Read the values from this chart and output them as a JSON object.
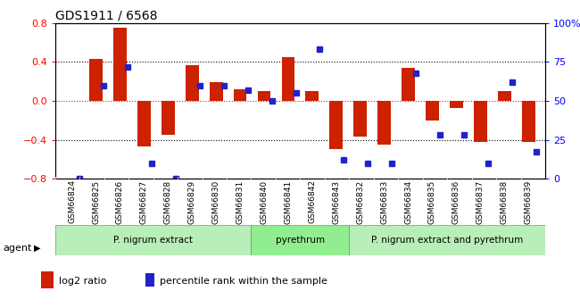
{
  "title": "GDS1911 / 6568",
  "samples": [
    "GSM66824",
    "GSM66825",
    "GSM66826",
    "GSM66827",
    "GSM66828",
    "GSM66829",
    "GSM66830",
    "GSM66831",
    "GSM66840",
    "GSM66841",
    "GSM66842",
    "GSM66843",
    "GSM66832",
    "GSM66833",
    "GSM66834",
    "GSM66835",
    "GSM66836",
    "GSM66837",
    "GSM66838",
    "GSM66839"
  ],
  "log2_ratio": [
    0.0,
    0.43,
    0.75,
    -0.47,
    -0.35,
    0.37,
    0.19,
    0.12,
    0.1,
    0.45,
    0.1,
    -0.5,
    -0.37,
    -0.45,
    0.34,
    -0.2,
    -0.07,
    -0.42,
    0.1,
    -0.42
  ],
  "percentile": [
    0,
    60,
    72,
    10,
    0,
    60,
    60,
    57,
    50,
    55,
    83,
    12,
    10,
    10,
    68,
    28,
    28,
    10,
    62,
    17
  ],
  "groups": [
    {
      "label": "P. nigrum extract",
      "start": 0,
      "end": 7
    },
    {
      "label": "pyrethrum",
      "start": 8,
      "end": 11
    },
    {
      "label": "P. nigrum extract and pyrethrum",
      "start": 12,
      "end": 19
    }
  ],
  "bar_color": "#CC2200",
  "dot_color": "#2222CC",
  "ylim_left": [
    -0.8,
    0.8
  ],
  "ylim_right": [
    0,
    100
  ],
  "yticks_left": [
    -0.8,
    -0.4,
    0.0,
    0.4,
    0.8
  ],
  "yticks_right": [
    0,
    25,
    50,
    75,
    100
  ],
  "background_color": "#ffffff",
  "plot_bg": "#ffffff",
  "group_color_1": "#b8eeb8",
  "group_color_2": "#90ee90",
  "group_border": "#888888",
  "label_row_bg": "#d0d0d0"
}
